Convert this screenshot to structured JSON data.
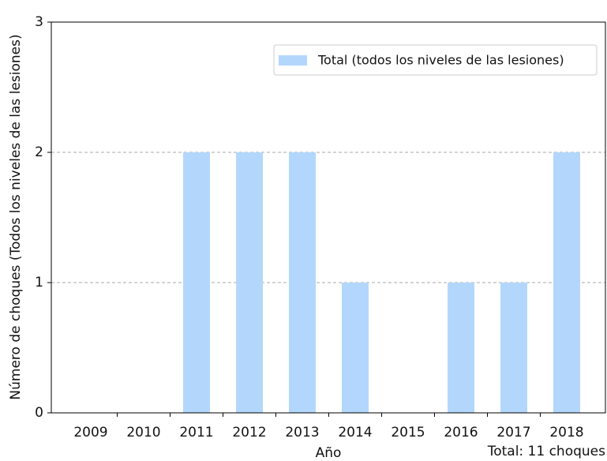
{
  "chart_data": {
    "type": "bar",
    "categories": [
      "2009",
      "2010",
      "2011",
      "2012",
      "2013",
      "2014",
      "2015",
      "2016",
      "2017",
      "2018"
    ],
    "values": [
      0,
      0,
      2,
      2,
      2,
      1,
      0,
      1,
      1,
      2
    ],
    "series_name": "Total (todos los niveles de las lesiones)",
    "color": "#b3d7fc",
    "ylim": [
      0,
      3
    ],
    "yticks": [
      0,
      1,
      2,
      3
    ],
    "grid": true,
    "legend": "upper right",
    "xlabel": "Año",
    "ylabel": "Número de choques (Todos los niveles de las lesiones)",
    "annotation": "Total: 11 choques"
  }
}
